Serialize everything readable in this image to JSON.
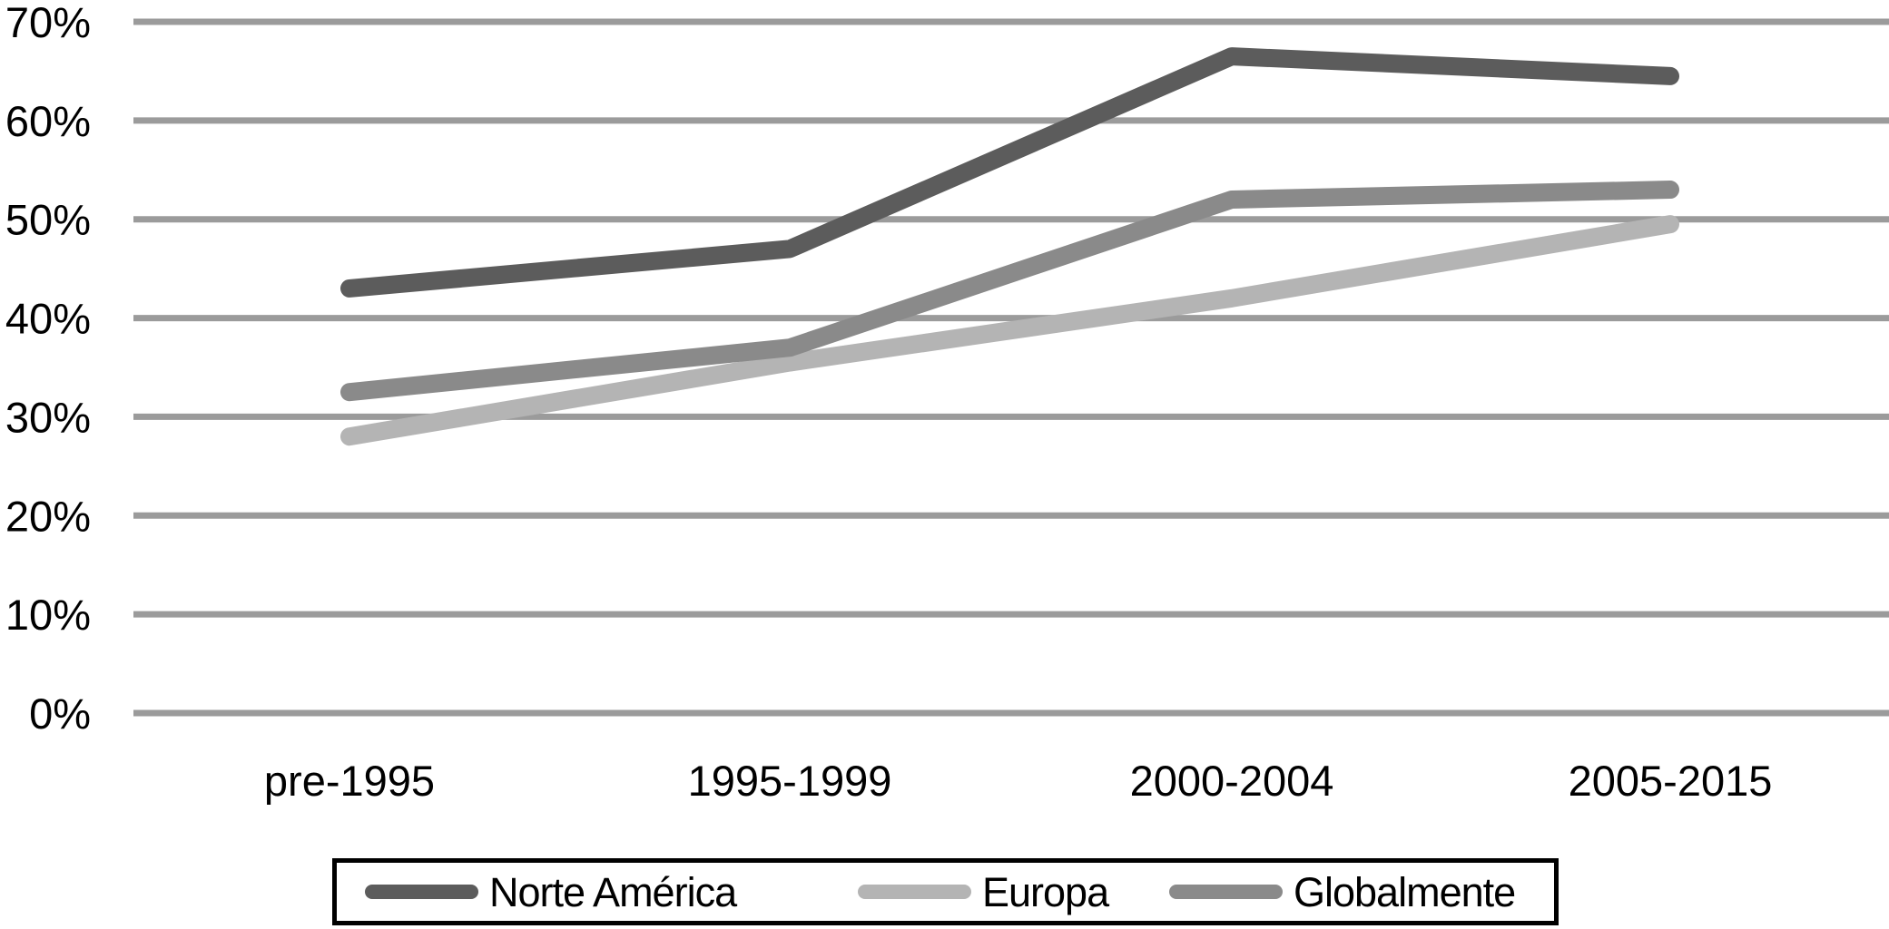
{
  "chart_data": {
    "type": "line",
    "categories": [
      "pre-1995",
      "1995-1999",
      "2000-2004",
      "2005-2015"
    ],
    "series": [
      {
        "name": "Norte América",
        "color": "#5c5c5c",
        "values": [
          43,
          47,
          66.5,
          64.5
        ]
      },
      {
        "name": "Europa",
        "color": "#b4b4b4",
        "values": [
          28,
          35.5,
          42,
          49.5
        ]
      },
      {
        "name": "Globalmente",
        "color": "#8a8a8a",
        "values": [
          32.5,
          37,
          52,
          53
        ]
      }
    ],
    "ylim": [
      0,
      70
    ],
    "ytick_step": 10,
    "ytick_labels": [
      "0%",
      "10%",
      "20%",
      "30%",
      "40%",
      "50%",
      "60%",
      "70%"
    ],
    "grid": "horizontal",
    "gridline_color": "#9b9b9b",
    "axis_text_color": "#000000",
    "background_color": "#ffffff",
    "legend_position": "bottom",
    "legend_border_color": "#000000",
    "legend_entries": [
      "Norte América",
      "Europa",
      "Globalmente"
    ]
  }
}
